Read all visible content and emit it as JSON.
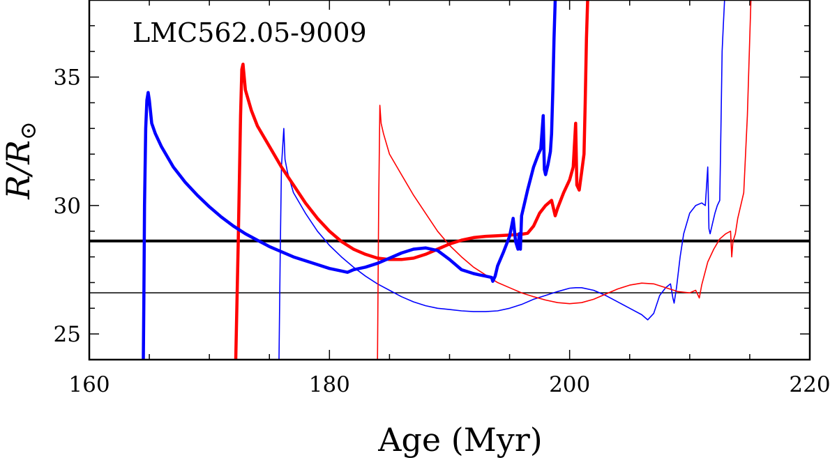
{
  "chart_data": {
    "type": "line",
    "annotation": "LMC562.05-9009",
    "xlabel": "Age (Myr)",
    "ylabel_main": "R/R",
    "ylabel_symbol": "⊙",
    "xlim": [
      160,
      220
    ],
    "ylim": [
      24,
      38
    ],
    "x_major_ticks": [
      160,
      180,
      200,
      220
    ],
    "x_minor_step": 5,
    "y_major_ticks": [
      25,
      30,
      35
    ],
    "y_minor_step": 1,
    "hlines": [
      {
        "name": "thick-reference",
        "y": 28.62,
        "color": "#000000",
        "weight": "thick"
      },
      {
        "name": "thin-reference",
        "y": 26.6,
        "color": "#000000",
        "weight": "thin"
      }
    ],
    "series": [
      {
        "name": "blue-thick",
        "color": "#0000ff",
        "weight": "thick",
        "x": [
          164.5,
          164.55,
          164.6,
          164.7,
          164.8,
          164.9,
          165.0,
          165.2,
          165.5,
          166,
          167,
          168,
          169,
          170,
          171,
          172,
          173,
          174,
          175,
          176,
          177,
          178,
          179,
          180,
          181,
          181.5,
          182,
          183,
          184,
          185,
          186,
          187,
          188,
          189,
          190,
          191,
          192,
          192.5,
          193,
          193.5,
          193.6,
          193.8,
          194,
          194.5,
          195,
          195.3,
          195.5,
          195.7,
          195.8,
          195.9,
          196,
          196.5,
          197,
          197.4,
          197.6,
          197.8,
          197.85,
          197.9,
          198,
          198.2,
          198.4,
          198.5,
          198.6,
          198.7,
          198.8
        ],
        "y": [
          24.0,
          26.5,
          30.0,
          33.0,
          34.1,
          34.4,
          34.1,
          33.2,
          32.8,
          32.3,
          31.5,
          30.9,
          30.4,
          29.95,
          29.55,
          29.2,
          28.9,
          28.65,
          28.4,
          28.2,
          28.0,
          27.85,
          27.7,
          27.55,
          27.45,
          27.4,
          27.5,
          27.6,
          27.75,
          27.95,
          28.15,
          28.3,
          28.35,
          28.25,
          27.9,
          27.5,
          27.35,
          27.3,
          27.25,
          27.2,
          27.05,
          27.25,
          27.65,
          28.2,
          28.8,
          29.5,
          28.6,
          28.3,
          28.9,
          28.3,
          29.6,
          30.6,
          31.5,
          32.0,
          32.2,
          33.5,
          32.3,
          31.4,
          31.2,
          31.6,
          32.1,
          32.8,
          34.5,
          36.5,
          38.0
        ]
      },
      {
        "name": "red-thick",
        "color": "#ff0000",
        "weight": "thick",
        "x": [
          172.2,
          172.4,
          172.6,
          172.7,
          172.8,
          173,
          173.5,
          174,
          175,
          176,
          177,
          178,
          179,
          180,
          181,
          182,
          183,
          184,
          185,
          186,
          187,
          188,
          189,
          190,
          191,
          192,
          193,
          194,
          195,
          196,
          196.5,
          197,
          197.5,
          198,
          198.5,
          198.8,
          199,
          199.5,
          200,
          200.3,
          200.5,
          200.6,
          200.8,
          201,
          201.2,
          201.3,
          201.4,
          201.5
        ],
        "y": [
          24.0,
          28.5,
          33.5,
          35.3,
          35.5,
          34.5,
          33.7,
          33.1,
          32.3,
          31.5,
          30.8,
          30.1,
          29.5,
          29.0,
          28.6,
          28.3,
          28.1,
          27.95,
          27.9,
          27.9,
          27.95,
          28.1,
          28.3,
          28.5,
          28.65,
          28.75,
          28.8,
          28.82,
          28.85,
          28.88,
          28.92,
          29.2,
          29.7,
          30.0,
          30.2,
          29.6,
          29.9,
          30.5,
          31.0,
          31.5,
          33.2,
          30.8,
          30.6,
          31.3,
          32.0,
          34.0,
          36.5,
          38.0
        ]
      },
      {
        "name": "blue-thin",
        "color": "#0000ff",
        "weight": "thin",
        "x": [
          175.8,
          175.9,
          176,
          176.2,
          176.3,
          176.5,
          177,
          178,
          179,
          180,
          181,
          182,
          183,
          184,
          185,
          186,
          187,
          188,
          189,
          190,
          191,
          192,
          193,
          194,
          195,
          196,
          197,
          198,
          199,
          200,
          200.5,
          201,
          202,
          203,
          204,
          205,
          206,
          206.5,
          207,
          207.5,
          208,
          208.4,
          208.6,
          208.7,
          208.9,
          209.2,
          209.5,
          210,
          210.5,
          211,
          211.3,
          211.5,
          211.6,
          211.7,
          211.9,
          212.1,
          212.3,
          212.5,
          212.6,
          212.7,
          212.8,
          212.9
        ],
        "y": [
          24.0,
          28.0,
          31.5,
          33.0,
          31.8,
          31.3,
          30.5,
          29.7,
          29.0,
          28.45,
          28.0,
          27.6,
          27.25,
          26.95,
          26.7,
          26.45,
          26.25,
          26.1,
          26.0,
          25.95,
          25.9,
          25.87,
          25.87,
          25.9,
          26.0,
          26.15,
          26.35,
          26.5,
          26.65,
          26.78,
          26.8,
          26.8,
          26.7,
          26.5,
          26.25,
          26.0,
          25.75,
          25.55,
          25.8,
          26.5,
          26.8,
          26.95,
          26.4,
          26.2,
          26.8,
          28.0,
          28.9,
          29.7,
          30.0,
          30.1,
          30.0,
          31.5,
          29.1,
          28.9,
          29.3,
          29.7,
          30.0,
          30.2,
          33.0,
          36.0,
          37.0,
          38.0
        ]
      },
      {
        "name": "red-thin",
        "color": "#ff0000",
        "weight": "thin",
        "x": [
          184.0,
          184.1,
          184.2,
          184.3,
          184.5,
          185,
          186,
          187,
          188,
          189,
          190,
          191,
          192,
          193,
          194,
          195,
          196,
          197,
          198,
          199,
          200,
          201,
          202,
          203,
          204,
          205,
          206,
          207,
          208,
          209,
          210,
          210.5,
          210.8,
          211,
          211.5,
          212,
          212.5,
          213,
          213.4,
          213.5,
          213.6,
          213.8,
          214,
          214.5,
          214.8,
          215,
          215.1
        ],
        "y": [
          24.0,
          30.0,
          33.9,
          33.2,
          32.8,
          32.0,
          31.2,
          30.4,
          29.7,
          29.0,
          28.45,
          28.0,
          27.6,
          27.3,
          27.0,
          26.8,
          26.6,
          26.45,
          26.32,
          26.22,
          26.18,
          26.22,
          26.35,
          26.55,
          26.75,
          26.9,
          26.98,
          26.95,
          26.8,
          26.65,
          26.6,
          26.7,
          26.4,
          26.9,
          27.8,
          28.3,
          28.7,
          28.9,
          29.0,
          28.0,
          28.6,
          28.9,
          29.5,
          30.5,
          33.5,
          36.5,
          38.0
        ]
      }
    ]
  }
}
